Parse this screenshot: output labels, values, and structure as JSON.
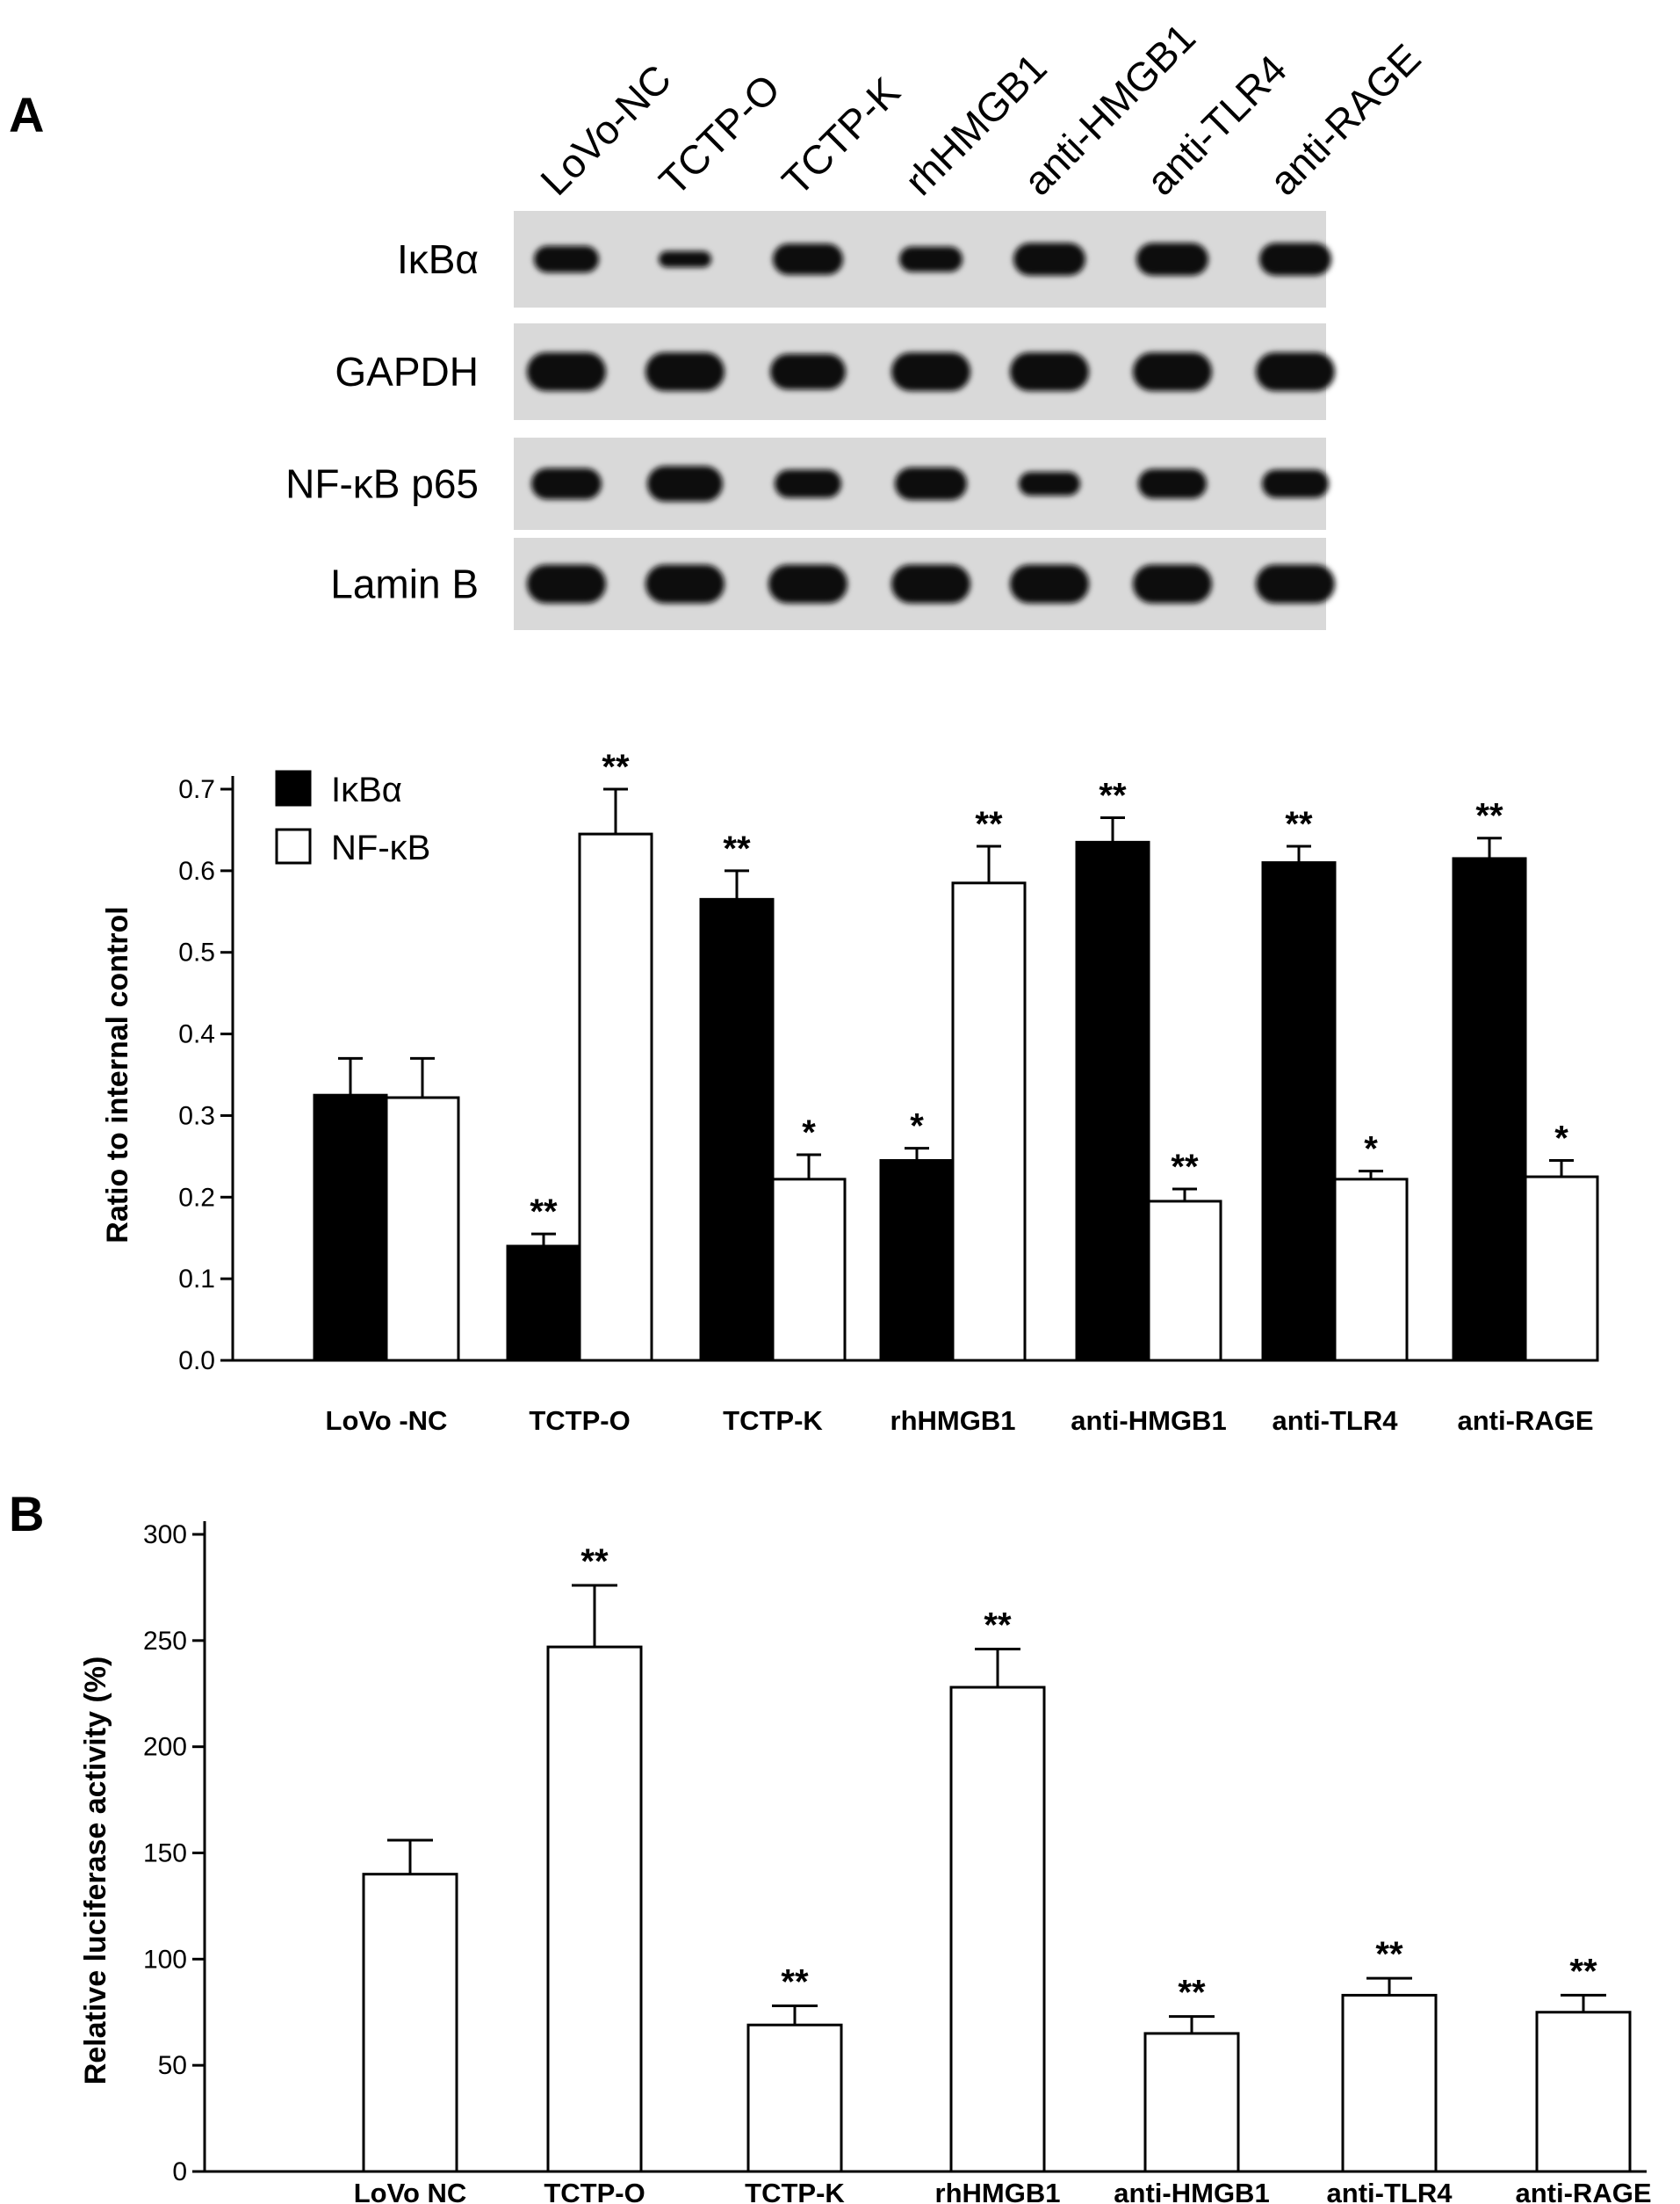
{
  "figure": {
    "panel_a_letter": "A",
    "panel_b_letter": "B"
  },
  "western_blot": {
    "lanes": [
      "LoVo-NC",
      "TCTP-O",
      "TCTP-K",
      "rhHMGB1",
      "anti-HMGB1",
      "anti-TLR4",
      "anti-RAGE"
    ],
    "rows": [
      {
        "label": "IκBα",
        "band_intensity": [
          0.6,
          0.25,
          0.75,
          0.55,
          0.8,
          0.8,
          0.8
        ]
      },
      {
        "label": "GAPDH",
        "band_intensity": [
          1,
          1,
          0.9,
          1,
          1,
          1,
          1
        ]
      },
      {
        "label": "NF-κB p65",
        "band_intensity": [
          0.75,
          0.9,
          0.65,
          0.8,
          0.5,
          0.7,
          0.65
        ]
      },
      {
        "label": "Lamin B",
        "band_intensity": [
          1,
          1,
          1,
          1,
          1,
          1,
          1
        ]
      }
    ]
  },
  "chart_data": [
    {
      "type": "bar",
      "panel": "A",
      "ylabel": "Ratio to internal control",
      "xlabel": "",
      "ylim": [
        0,
        0.7
      ],
      "yticks": [
        "0.0",
        "0.1",
        "0.2",
        "0.3",
        "0.4",
        "0.5",
        "0.6",
        "0.7"
      ],
      "yticks_values": [
        0,
        0.1,
        0.2,
        0.3,
        0.4,
        0.5,
        0.6,
        0.7
      ],
      "legend_position": "top-left",
      "categories": [
        "LoVo -NC",
        "TCTP-O",
        "TCTP-K",
        "rhHMGB1",
        "anti-HMGB1",
        "anti-TLR4",
        "anti-RAGE"
      ],
      "series": [
        {
          "name": "IκBα",
          "color": "#000000",
          "values": [
            0.325,
            0.14,
            0.565,
            0.245,
            0.635,
            0.61,
            0.615
          ],
          "errors": [
            0.045,
            0.015,
            0.035,
            0.015,
            0.03,
            0.02,
            0.025
          ],
          "significance": [
            "",
            "**",
            "**",
            "*",
            "**",
            "**",
            "**"
          ]
        },
        {
          "name": "NF-κB",
          "color": "#ffffff",
          "values": [
            0.322,
            0.645,
            0.222,
            0.585,
            0.195,
            0.222,
            0.225
          ],
          "errors": [
            0.048,
            0.055,
            0.03,
            0.045,
            0.015,
            0.01,
            0.02
          ],
          "significance": [
            "",
            "**",
            "*",
            "**",
            "**",
            "*",
            "*"
          ]
        }
      ]
    },
    {
      "type": "bar",
      "panel": "B",
      "ylabel": "Relative luciferase activity (%)",
      "xlabel": "",
      "ylim": [
        0,
        300
      ],
      "yticks": [
        "0",
        "50",
        "100",
        "150",
        "200",
        "250",
        "300"
      ],
      "yticks_values": [
        0,
        50,
        100,
        150,
        200,
        250,
        300
      ],
      "categories": [
        "LoVo NC",
        "TCTP-O",
        "TCTP-K",
        "rhHMGB1",
        "anti-HMGB1",
        "anti-TLR4",
        "anti-RAGE"
      ],
      "values": [
        140,
        247,
        69,
        228,
        65,
        83,
        75
      ],
      "errors": [
        16,
        29,
        9,
        18,
        8,
        8,
        8
      ],
      "significance": [
        "",
        "**",
        "**",
        "**",
        "**",
        "**",
        "**"
      ]
    }
  ]
}
